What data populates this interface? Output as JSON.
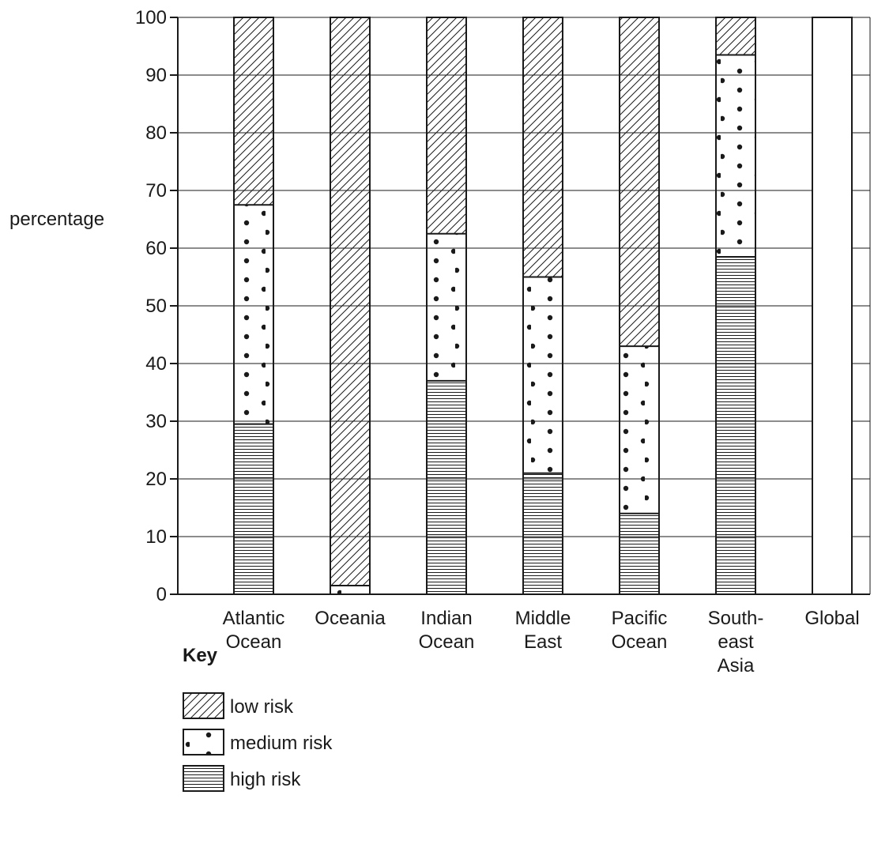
{
  "chart_data": {
    "type": "bar",
    "stacked": true,
    "ylabel": "percentage",
    "ylim": [
      0,
      100
    ],
    "yticks": [
      0,
      10,
      20,
      30,
      40,
      50,
      60,
      70,
      80,
      90,
      100
    ],
    "grid": true,
    "categories": [
      [
        "Atlantic",
        "Ocean"
      ],
      [
        "Oceania"
      ],
      [
        "Indian",
        "Ocean"
      ],
      [
        "Middle",
        "East"
      ],
      [
        "Pacific",
        "Ocean"
      ],
      [
        "South-",
        "east",
        "Asia"
      ],
      [
        "Global"
      ]
    ],
    "series": [
      {
        "name": "high risk",
        "pattern": "horizontal-lines",
        "values": [
          29.5,
          0,
          37,
          21,
          14,
          58.5,
          null
        ]
      },
      {
        "name": "medium risk",
        "pattern": "dots",
        "values": [
          38,
          1.5,
          25.5,
          34,
          29,
          35,
          null
        ]
      },
      {
        "name": "low risk",
        "pattern": "diagonal-hatch",
        "values": [
          32.5,
          98.5,
          37.5,
          45,
          57,
          6.5,
          null
        ]
      }
    ],
    "legend": {
      "title": "Key",
      "placement": "bottom-left",
      "order": [
        "low risk",
        "medium risk",
        "high risk"
      ]
    },
    "colors": {
      "ink": "#1a1a1a",
      "background": "#ffffff"
    }
  }
}
